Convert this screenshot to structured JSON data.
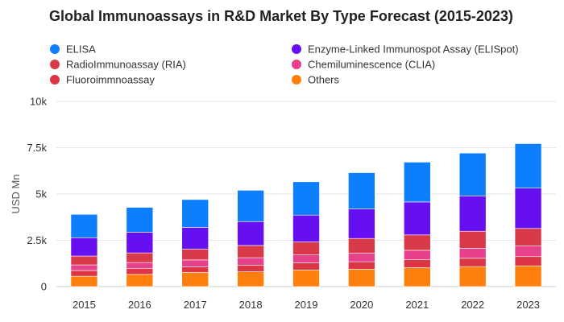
{
  "chart_data": {
    "type": "bar",
    "stacked": true,
    "title": "Global Immunoassays in R&D Market By Type Forecast (2015-2023)",
    "xlabel": "",
    "ylabel": "USD Mn",
    "ylim": [
      0,
      10000
    ],
    "yticks": [
      0,
      2500,
      5000,
      7500,
      10000
    ],
    "ytick_labels": [
      "0",
      "2.5k",
      "5k",
      "7.5k",
      "10k"
    ],
    "grid": true,
    "legend_position": "top",
    "categories": [
      "2015",
      "2016",
      "2017",
      "2018",
      "2019",
      "2020",
      "2021",
      "2022",
      "2023"
    ],
    "series": [
      {
        "name": "Others",
        "color": "#FF7F0E",
        "values": [
          560,
          660,
          760,
          800,
          900,
          940,
          1020,
          1080,
          1120
        ]
      },
      {
        "name": "Fluoroimmnoassay",
        "color": "#DC3545",
        "values": [
          310,
          310,
          300,
          360,
          390,
          400,
          430,
          450,
          500
        ]
      },
      {
        "name": "Chemiluminescence (CLIA)",
        "color": "#E8418C",
        "values": [
          300,
          330,
          380,
          400,
          420,
          460,
          510,
          540,
          570
        ]
      },
      {
        "name": "RadioImmunoassay (RIA)",
        "color": "#D93A49",
        "values": [
          480,
          520,
          580,
          660,
          700,
          800,
          830,
          920,
          950
        ]
      },
      {
        "name": "Enzyme-Linked Immunospot Assay (ELISpot)",
        "color": "#6610F2",
        "values": [
          990,
          1120,
          1180,
          1290,
          1450,
          1590,
          1780,
          1910,
          2180
        ]
      },
      {
        "name": "ELISA",
        "color": "#0D7EFC",
        "values": [
          1260,
          1340,
          1500,
          1690,
          1800,
          1960,
          2150,
          2310,
          2400
        ]
      }
    ],
    "legend": [
      {
        "name": "ELISA",
        "color": "#0D7EFC"
      },
      {
        "name": "RadioImmunoassay (RIA)",
        "color": "#D93A49"
      },
      {
        "name": "Fluoroimmnoassay",
        "color": "#DC3545"
      },
      {
        "name": "Enzyme-Linked Immunospot Assay (ELISpot)",
        "color": "#6610F2"
      },
      {
        "name": "Chemiluminescence (CLIA)",
        "color": "#E8418C"
      },
      {
        "name": "Others",
        "color": "#FF7F0E"
      }
    ]
  }
}
